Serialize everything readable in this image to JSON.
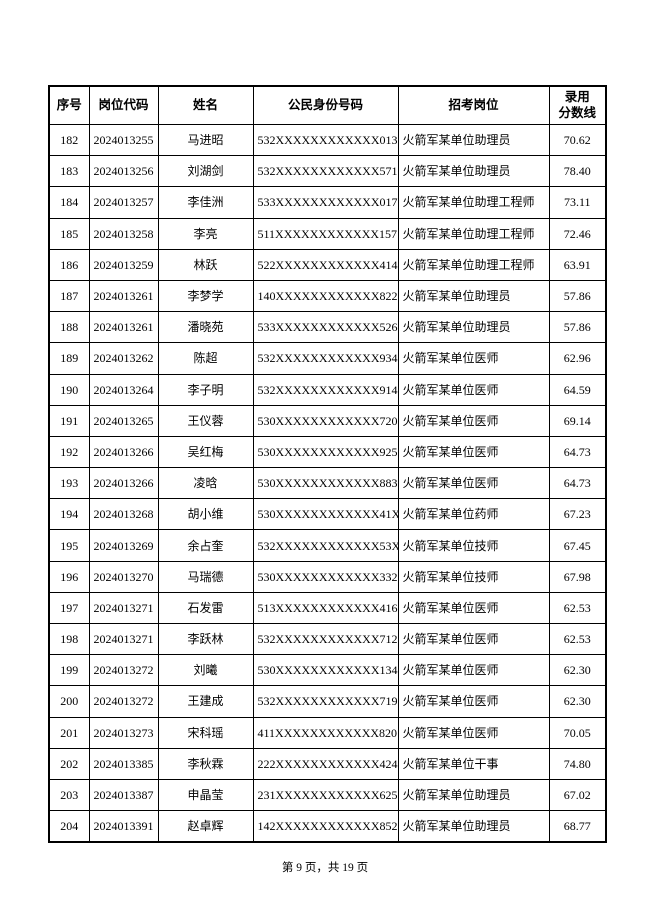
{
  "document": {
    "footer_text": "第 9 页，共 19 页"
  },
  "table": {
    "headers": [
      "序号",
      "岗位代码",
      "姓名",
      "公民身份号码",
      "招考岗位",
      "录用\n分数线"
    ],
    "rows": [
      [
        "182",
        "2024013255",
        "马进昭",
        "532XXXXXXXXXXXX013",
        "火箭军某单位助理员",
        "70.62"
      ],
      [
        "183",
        "2024013256",
        "刘湖剑",
        "532XXXXXXXXXXXX571",
        "火箭军某单位助理员",
        "78.40"
      ],
      [
        "184",
        "2024013257",
        "李佳洲",
        "533XXXXXXXXXXXX017",
        "火箭军某单位助理工程师",
        "73.11"
      ],
      [
        "185",
        "2024013258",
        "李亮",
        "511XXXXXXXXXXXX157",
        "火箭军某单位助理工程师",
        "72.46"
      ],
      [
        "186",
        "2024013259",
        "林跃",
        "522XXXXXXXXXXXX414",
        "火箭军某单位助理工程师",
        "63.91"
      ],
      [
        "187",
        "2024013261",
        "李梦学",
        "140XXXXXXXXXXXX822",
        "火箭军某单位助理员",
        "57.86"
      ],
      [
        "188",
        "2024013261",
        "潘晓苑",
        "533XXXXXXXXXXXX526",
        "火箭军某单位助理员",
        "57.86"
      ],
      [
        "189",
        "2024013262",
        "陈超",
        "532XXXXXXXXXXXX934",
        "火箭军某单位医师",
        "62.96"
      ],
      [
        "190",
        "2024013264",
        "李子明",
        "532XXXXXXXXXXXX914",
        "火箭军某单位医师",
        "64.59"
      ],
      [
        "191",
        "2024013265",
        "王仪蓉",
        "530XXXXXXXXXXXX720",
        "火箭军某单位医师",
        "69.14"
      ],
      [
        "192",
        "2024013266",
        "吴红梅",
        "530XXXXXXXXXXXX925",
        "火箭军某单位医师",
        "64.73"
      ],
      [
        "193",
        "2024013266",
        "凌晗",
        "530XXXXXXXXXXXX883",
        "火箭军某单位医师",
        "64.73"
      ],
      [
        "194",
        "2024013268",
        "胡小维",
        "530XXXXXXXXXXXX41X",
        "火箭军某单位药师",
        "67.23"
      ],
      [
        "195",
        "2024013269",
        "余占奎",
        "532XXXXXXXXXXXX53X",
        "火箭军某单位技师",
        "67.45"
      ],
      [
        "196",
        "2024013270",
        "马瑞德",
        "530XXXXXXXXXXXX332",
        "火箭军某单位技师",
        "67.98"
      ],
      [
        "197",
        "2024013271",
        "石发雷",
        "513XXXXXXXXXXXX416",
        "火箭军某单位医师",
        "62.53"
      ],
      [
        "198",
        "2024013271",
        "李跃林",
        "532XXXXXXXXXXXX712",
        "火箭军某单位医师",
        "62.53"
      ],
      [
        "199",
        "2024013272",
        "刘曦",
        "530XXXXXXXXXXXX134",
        "火箭军某单位医师",
        "62.30"
      ],
      [
        "200",
        "2024013272",
        "王建成",
        "532XXXXXXXXXXXX719",
        "火箭军某单位医师",
        "62.30"
      ],
      [
        "201",
        "2024013273",
        "宋科瑶",
        "411XXXXXXXXXXXX820",
        "火箭军某单位医师",
        "70.05"
      ],
      [
        "202",
        "2024013385",
        "李秋霖",
        "222XXXXXXXXXXXX424",
        "火箭军某单位干事",
        "74.80"
      ],
      [
        "203",
        "2024013387",
        "申晶莹",
        "231XXXXXXXXXXXX625",
        "火箭军某单位助理员",
        "67.02"
      ],
      [
        "204",
        "2024013391",
        "赵卓辉",
        "142XXXXXXXXXXXX852",
        "火箭军某单位助理员",
        "68.77"
      ]
    ]
  }
}
